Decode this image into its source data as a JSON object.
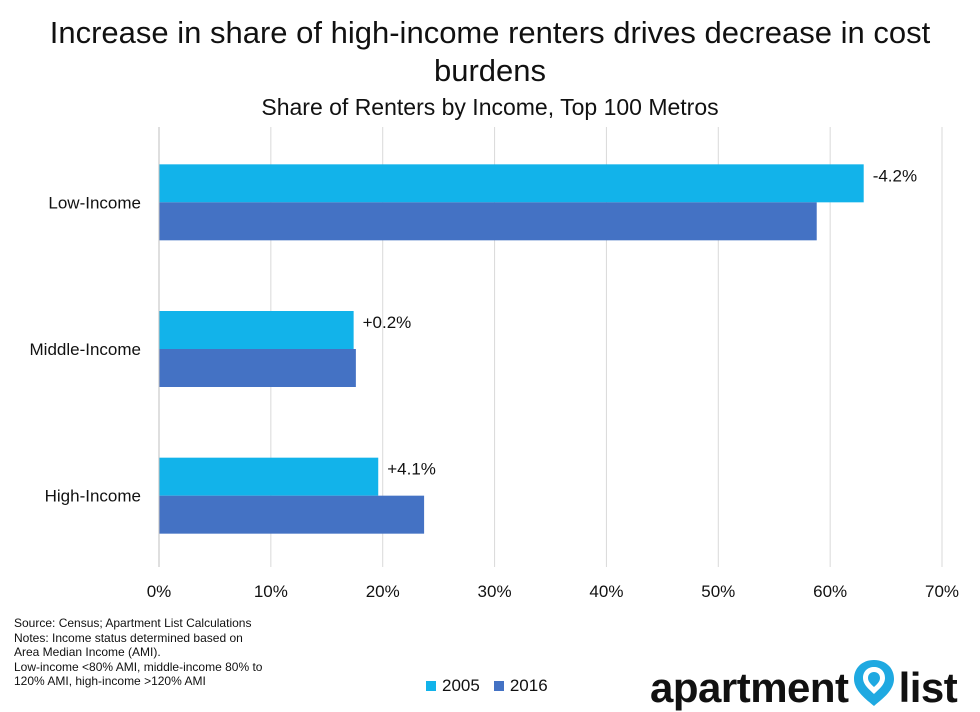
{
  "chart_data": {
    "type": "bar",
    "orientation": "horizontal",
    "title": "Increase in share of high-income renters drives decrease in cost burdens",
    "subtitle": "Share of Renters by Income, Top 100 Metros",
    "categories": [
      "Low-Income",
      "Middle-Income",
      "High-Income"
    ],
    "series": [
      {
        "name": "2005",
        "values": [
          63.0,
          17.4,
          19.6
        ],
        "color": "#12b3ea"
      },
      {
        "name": "2016",
        "values": [
          58.8,
          17.6,
          23.7
        ],
        "color": "#4472c4"
      }
    ],
    "annotations": [
      "-4.2%",
      "+0.2%",
      "+4.1%"
    ],
    "x_ticks": [
      "0%",
      "10%",
      "20%",
      "30%",
      "40%",
      "50%",
      "60%",
      "70%"
    ],
    "xlim": [
      0,
      70
    ],
    "xlabel": "",
    "ylabel": "",
    "grid": "vertical",
    "legend": "bottom"
  },
  "notes": {
    "source": "Source: Census; Apartment List Calculations",
    "line1": "Notes: Income status determined based on",
    "line2": "Area Median Income (AMI).",
    "line3": "Low-income <80% AMI, middle-income 80% to",
    "line4": "120% AMI, high-income >120% AMI"
  },
  "logo": {
    "text_left": "apartment",
    "text_right": "list",
    "pin_color": "#1fa9e1"
  }
}
